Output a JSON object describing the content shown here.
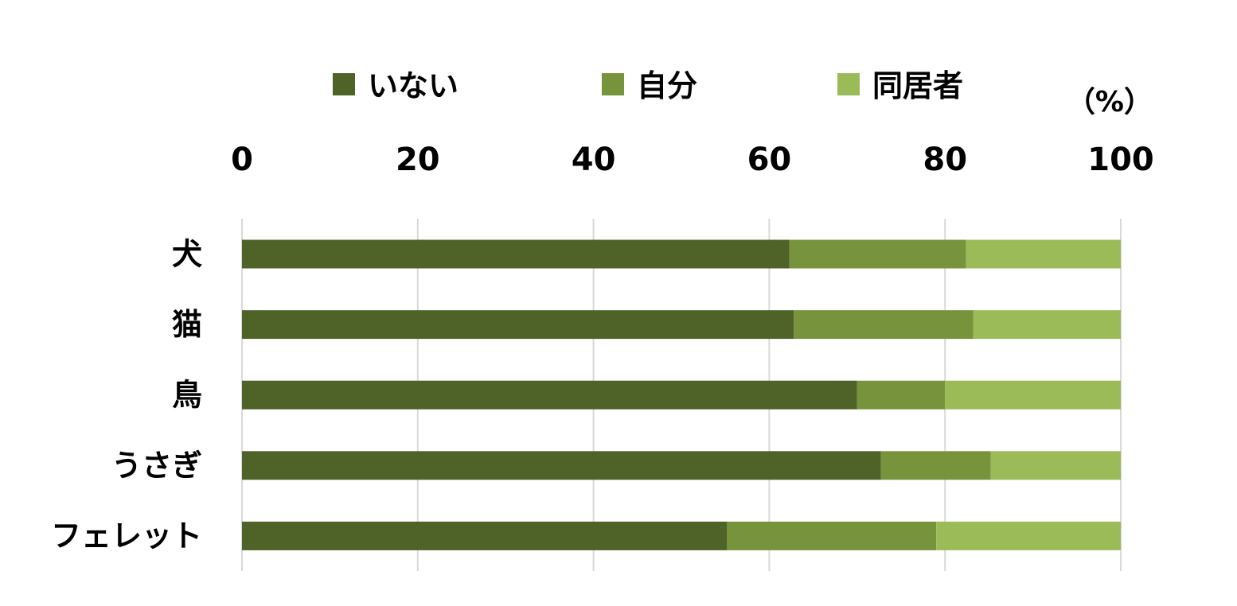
{
  "chart_data": {
    "type": "bar",
    "orientation": "horizontal",
    "stacked": true,
    "categories": [
      "犬",
      "猫",
      "鳥",
      "うさぎ",
      "フェレット"
    ],
    "series": [
      {
        "name": "いない",
        "values": [
          62.3,
          62.8,
          70.0,
          72.7,
          55.2
        ],
        "color": "#4f6228"
      },
      {
        "name": "自分",
        "values": [
          20.1,
          20.4,
          10.0,
          12.5,
          23.8
        ],
        "color": "#77933c"
      },
      {
        "name": "同居者",
        "values": [
          17.6,
          16.8,
          20.0,
          14.8,
          21.0
        ],
        "color": "#9bbb59"
      }
    ],
    "xticks": [
      "0",
      "20",
      "40",
      "60",
      "80",
      "100"
    ],
    "xlim": [
      0,
      100
    ],
    "x_axis_position": "top",
    "unit_label": "（%）",
    "legend_position": "top",
    "grid": true,
    "gridline_color": "#d9d9d9"
  }
}
